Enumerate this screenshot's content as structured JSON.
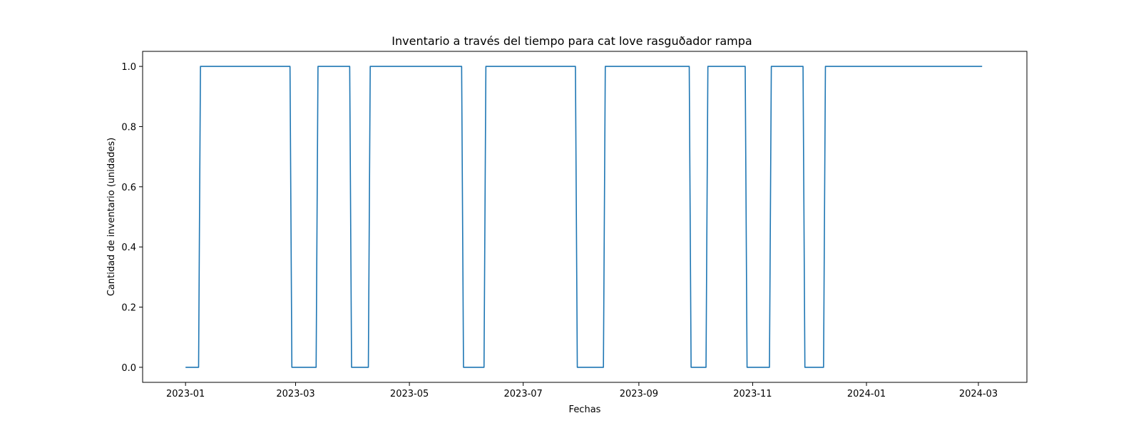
{
  "chart_data": {
    "type": "line",
    "title": "Inventario a través del tiempo para cat love rasguðador  rampa",
    "xlabel": "Fechas",
    "ylabel": "Cantidad de inventario (unidades)",
    "xlim": [
      "2022-12-09",
      "2024-03-27"
    ],
    "ylim": [
      -0.05,
      1.05
    ],
    "grid": false,
    "legend": "none",
    "x_ticks": [
      "2023-01",
      "2023-03",
      "2023-05",
      "2023-07",
      "2023-09",
      "2023-11",
      "2024-01",
      "2024-03"
    ],
    "y_ticks": [
      "0.0",
      "0.2",
      "0.4",
      "0.6",
      "0.8",
      "1.0"
    ],
    "series": [
      {
        "color": "#1f77b4",
        "x": [
          "2023-01-01",
          "2023-01-08",
          "2023-01-09",
          "2023-02-26",
          "2023-02-27",
          "2023-03-12",
          "2023-03-13",
          "2023-03-30",
          "2023-03-31",
          "2023-04-09",
          "2023-04-10",
          "2023-05-29",
          "2023-05-30",
          "2023-06-10",
          "2023-06-11",
          "2023-07-29",
          "2023-07-30",
          "2023-08-13",
          "2023-08-14",
          "2023-09-28",
          "2023-09-29",
          "2023-10-07",
          "2023-10-08",
          "2023-10-28",
          "2023-10-29",
          "2023-11-10",
          "2023-11-11",
          "2023-11-28",
          "2023-11-29",
          "2023-12-09",
          "2023-12-10",
          "2024-03-03"
        ],
        "y": [
          0,
          0,
          1,
          1,
          0,
          0,
          1,
          1,
          0,
          0,
          1,
          1,
          0,
          0,
          1,
          1,
          0,
          0,
          1,
          1,
          0,
          0,
          1,
          1,
          0,
          0,
          1,
          1,
          0,
          0,
          1,
          1
        ]
      }
    ]
  }
}
